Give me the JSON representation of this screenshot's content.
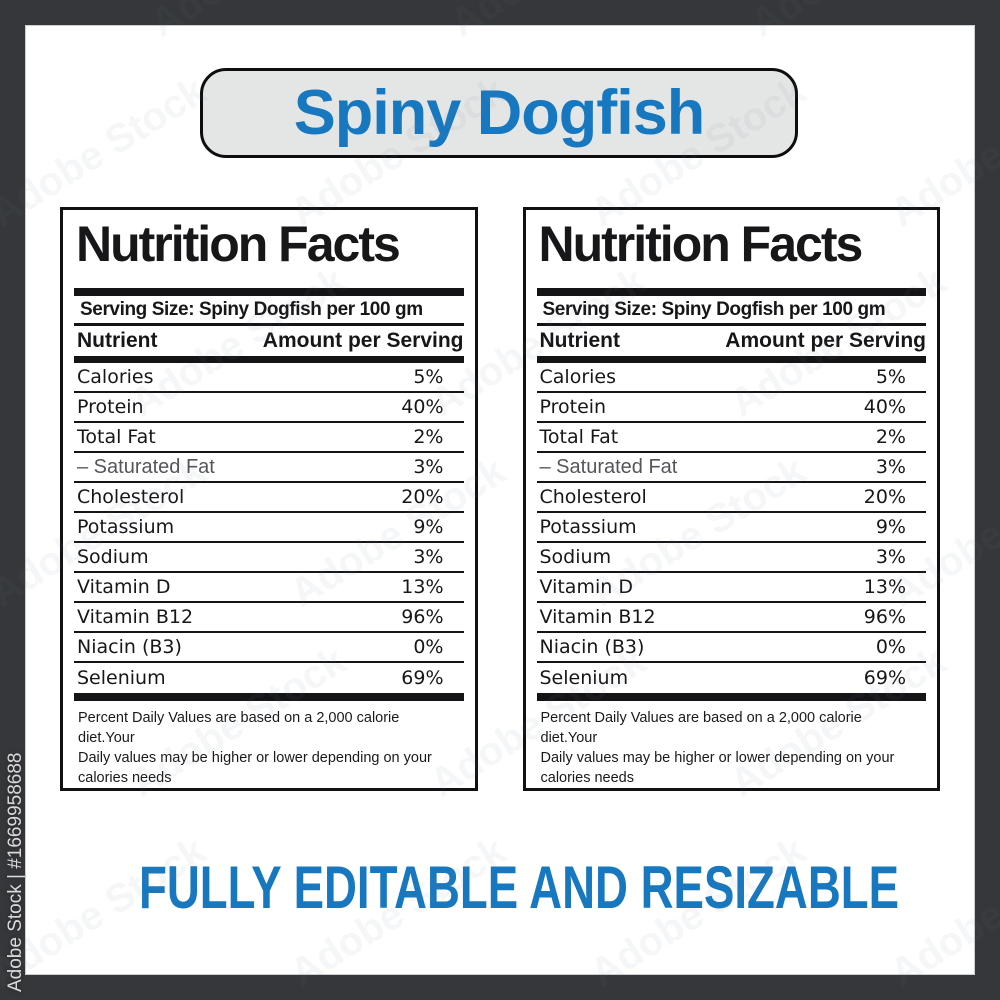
{
  "title": {
    "text": "Spiny Dogfish"
  },
  "nutrition": {
    "heading": "Nutrition Facts",
    "serving_size": "Serving Size: Spiny Dogfish per 100 gm",
    "columns": {
      "nutrient": "Nutrient",
      "amount": "Amount per Serving"
    },
    "rows": [
      {
        "name": "Calories",
        "value": "5%",
        "sub": false
      },
      {
        "name": "Protein",
        "value": "40%",
        "sub": false
      },
      {
        "name": "Total Fat",
        "value": "2%",
        "sub": false
      },
      {
        "name": "– Saturated Fat",
        "value": "3%",
        "sub": true
      },
      {
        "name": "Cholesterol",
        "value": "20%",
        "sub": false
      },
      {
        "name": "Potassium",
        "value": "9%",
        "sub": false
      },
      {
        "name": "Sodium",
        "value": "3%",
        "sub": false
      },
      {
        "name": "Vitamin D",
        "value": "13%",
        "sub": false
      },
      {
        "name": "Vitamin B12",
        "value": "96%",
        "sub": false
      },
      {
        "name": "Niacin (B3)",
        "value": "0%",
        "sub": false
      },
      {
        "name": "Selenium",
        "value": "69%",
        "sub": false
      }
    ],
    "footnote_lines": [
      "Percent Daily Values are based on a 2,000 calorie diet.Your",
      "Daily values may be higher or lower depending on your",
      "calories needs"
    ]
  },
  "tagline": {
    "text": "FULLY EDITABLE AND RESIZABLE"
  },
  "watermark": {
    "side_text": "Adobe Stock | #1669958688",
    "tile_text": "Adobe Stock"
  },
  "colors": {
    "accent_blue": "#1878bf",
    "frame_dark": "#35373a",
    "title_box_bg": "#e4e6e6",
    "ink": "#17171a",
    "sub_item_gray": "#55555a"
  }
}
